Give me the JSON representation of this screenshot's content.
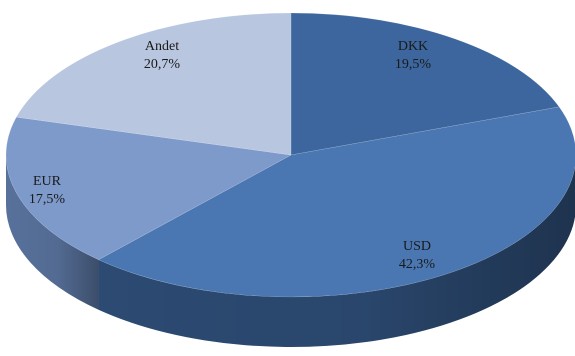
{
  "chart_data": {
    "type": "pie",
    "title": "",
    "three_d": true,
    "slices": [
      {
        "label": "DKK",
        "value_label": "19,5%",
        "value": 19.5,
        "color": "#3C669D",
        "side_color": "#2A4A73"
      },
      {
        "label": "USD",
        "value_label": "42,3%",
        "value": 42.3,
        "color": "#4A77B1",
        "side_color": "#2E4E78"
      },
      {
        "label": "EUR",
        "value_label": "17,5%",
        "value": 17.5,
        "color": "#7E9ACB",
        "side_color": "#5C77A3"
      },
      {
        "label": "Andet",
        "value_label": "20,7%",
        "value": 20.7,
        "color": "#B8C6E0",
        "side_color": "#8E9FBF"
      }
    ]
  }
}
